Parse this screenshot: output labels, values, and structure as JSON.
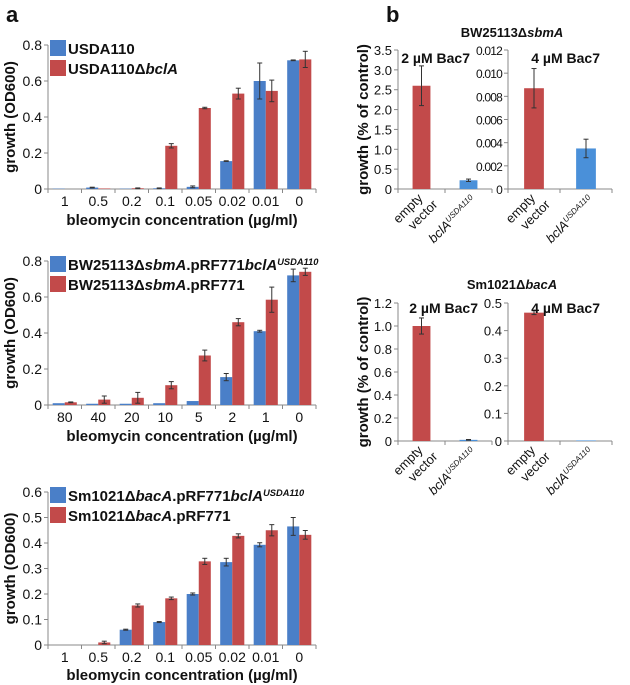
{
  "panel_labels": {
    "a": "a",
    "b": "b"
  },
  "colors": {
    "blue": "#4a7fc8",
    "red": "#c24a4a",
    "axis": "#888888"
  },
  "group_titles": {
    "b_top": "BW25113ΔsbmA",
    "b_bottom": "Sm1021ΔbacA"
  },
  "chart_data": [
    {
      "id": "a1",
      "type": "bar",
      "ylabel": "growth (OD600)",
      "xlabel": "bleomycin concentration (µg/ml)",
      "ylim": [
        0,
        0.8
      ],
      "yticks": [
        "0",
        "0.2",
        "0.4",
        "0.6",
        "0.8"
      ],
      "ytick_values": [
        0,
        0.2,
        0.4,
        0.6,
        0.8
      ],
      "categories": [
        "1",
        "0.5",
        "0.2",
        "0.1",
        "0.05",
        "0.02",
        "0.01",
        "0"
      ],
      "legend": "top-left",
      "series": [
        {
          "name": "USDA110",
          "color": "#4a7fc8",
          "values": [
            0.002,
            0.008,
            0.002,
            0.004,
            0.012,
            0.155,
            0.6,
            0.715
          ],
          "errors": [
            0,
            0.002,
            0,
            0.002,
            0.005,
            0.002,
            0.1,
            0.002
          ]
        },
        {
          "name": "USDA110ΔbclA",
          "color": "#c24a4a",
          "values": [
            0,
            0.003,
            0.004,
            0.24,
            0.45,
            0.53,
            0.545,
            0.72
          ],
          "errors": [
            0,
            0,
            0.002,
            0.012,
            0.004,
            0.03,
            0.06,
            0.045
          ]
        }
      ]
    },
    {
      "id": "a2",
      "type": "bar",
      "ylabel": "growth (OD600)",
      "xlabel": "bleomycin concentration (µg/ml)",
      "ylim": [
        0,
        0.8
      ],
      "yticks": [
        "0",
        "0.2",
        "0.4",
        "0.6",
        "0.8"
      ],
      "ytick_values": [
        0,
        0.2,
        0.4,
        0.6,
        0.8
      ],
      "categories": [
        "80",
        "40",
        "20",
        "10",
        "5",
        "2",
        "1",
        "0"
      ],
      "legend": "top-left",
      "series": [
        {
          "name": "BW25113ΔsbmA.pRF771bclAUSDA110",
          "color": "#4a7fc8",
          "values": [
            0.01,
            0.007,
            0.007,
            0.01,
            0.022,
            0.155,
            0.41,
            0.72
          ],
          "errors": [
            0,
            0,
            0,
            0,
            0,
            0.02,
            0.005,
            0.035
          ]
        },
        {
          "name": "BW25113ΔsbmA.pRF771",
          "color": "#c24a4a",
          "values": [
            0.015,
            0.03,
            0.04,
            0.11,
            0.275,
            0.46,
            0.585,
            0.74
          ],
          "errors": [
            0.002,
            0.02,
            0.03,
            0.02,
            0.03,
            0.02,
            0.07,
            0.02
          ]
        }
      ]
    },
    {
      "id": "a3",
      "type": "bar",
      "ylabel": "growth (OD600)",
      "xlabel": "bleomycin concentration (µg/ml)",
      "ylim": [
        0,
        0.6
      ],
      "yticks": [
        "0",
        "0.1",
        "0.2",
        "0.3",
        "0.4",
        "0.5",
        "0.6"
      ],
      "ytick_values": [
        0,
        0.1,
        0.2,
        0.3,
        0.4,
        0.5,
        0.6
      ],
      "categories": [
        "1",
        "0.5",
        "0.2",
        "0.1",
        "0.05",
        "0.02",
        "0.01",
        "0"
      ],
      "legend": "top-left",
      "series": [
        {
          "name": "Sm1021ΔbacA.pRF771bclAUSDA110",
          "color": "#4a7fc8",
          "values": [
            0,
            0,
            0.06,
            0.09,
            0.2,
            0.325,
            0.393,
            0.465
          ],
          "errors": [
            0,
            0,
            0.002,
            0.002,
            0.004,
            0.015,
            0.008,
            0.035
          ]
        },
        {
          "name": "Sm1021ΔbacA.pRF771",
          "color": "#c24a4a",
          "values": [
            0,
            0.01,
            0.155,
            0.183,
            0.328,
            0.428,
            0.45,
            0.432
          ],
          "errors": [
            0,
            0.005,
            0.006,
            0.005,
            0.012,
            0.008,
            0.022,
            0.017
          ]
        }
      ]
    },
    {
      "id": "b1",
      "type": "bar",
      "title": "2 µM Bac7",
      "ylabel": "growth (% of control)",
      "ylim": [
        0,
        3.5
      ],
      "yticks": [
        "0",
        "0.5",
        "1.0",
        "1.5",
        "2.0",
        "2.5",
        "3.0",
        "3.5"
      ],
      "ytick_values": [
        0,
        0.5,
        1,
        1.5,
        2,
        2.5,
        3,
        3.5
      ],
      "categories": [
        "empty vector",
        "bclAUSDA110"
      ],
      "values": [
        2.6,
        0.22
      ],
      "errors": [
        0.5,
        0.03
      ],
      "colors": [
        "#c24a4a",
        "#4a90d9"
      ]
    },
    {
      "id": "b2",
      "type": "bar",
      "title": "4 µM Bac7",
      "ylabel": "",
      "ylim": [
        0,
        0.012
      ],
      "yticks": [
        "0",
        "0.002",
        "0.004",
        "0.006",
        "0.008",
        "0.010",
        "0.012"
      ],
      "ytick_values": [
        0,
        0.002,
        0.004,
        0.006,
        0.008,
        0.01,
        0.012
      ],
      "categories": [
        "empty vector",
        "bclAUSDA110"
      ],
      "values": [
        0.0087,
        0.0035
      ],
      "errors": [
        0.0017,
        0.0008
      ],
      "colors": [
        "#c24a4a",
        "#4a90d9"
      ]
    },
    {
      "id": "b3",
      "type": "bar",
      "title": "2 µM Bac7",
      "ylabel": "growth (% of control)",
      "ylim": [
        0,
        1.2
      ],
      "yticks": [
        "0",
        "0.2",
        "0.4",
        "0.6",
        "0.8",
        "1.0",
        "1.2"
      ],
      "ytick_values": [
        0,
        0.2,
        0.4,
        0.6,
        0.8,
        1.0,
        1.2
      ],
      "categories": [
        "empty vector",
        "bclAUSDA110"
      ],
      "values": [
        1.0,
        0.01
      ],
      "errors": [
        0.07,
        0.003
      ],
      "colors": [
        "#c24a4a",
        "#4a90d9"
      ]
    },
    {
      "id": "b4",
      "type": "bar",
      "title": "4 µM Bac7",
      "ylabel": "",
      "ylim": [
        0,
        0.5
      ],
      "yticks": [
        "0",
        "0.1",
        "0.2",
        "0.3",
        "0.4",
        "0.5"
      ],
      "ytick_values": [
        0,
        0.1,
        0.2,
        0.3,
        0.4,
        0.5
      ],
      "categories": [
        "empty vector",
        "bclAUSDA110"
      ],
      "values": [
        0.465,
        0.002
      ],
      "errors": [
        0.007,
        0
      ],
      "colors": [
        "#c24a4a",
        "#4a90d9"
      ]
    }
  ]
}
